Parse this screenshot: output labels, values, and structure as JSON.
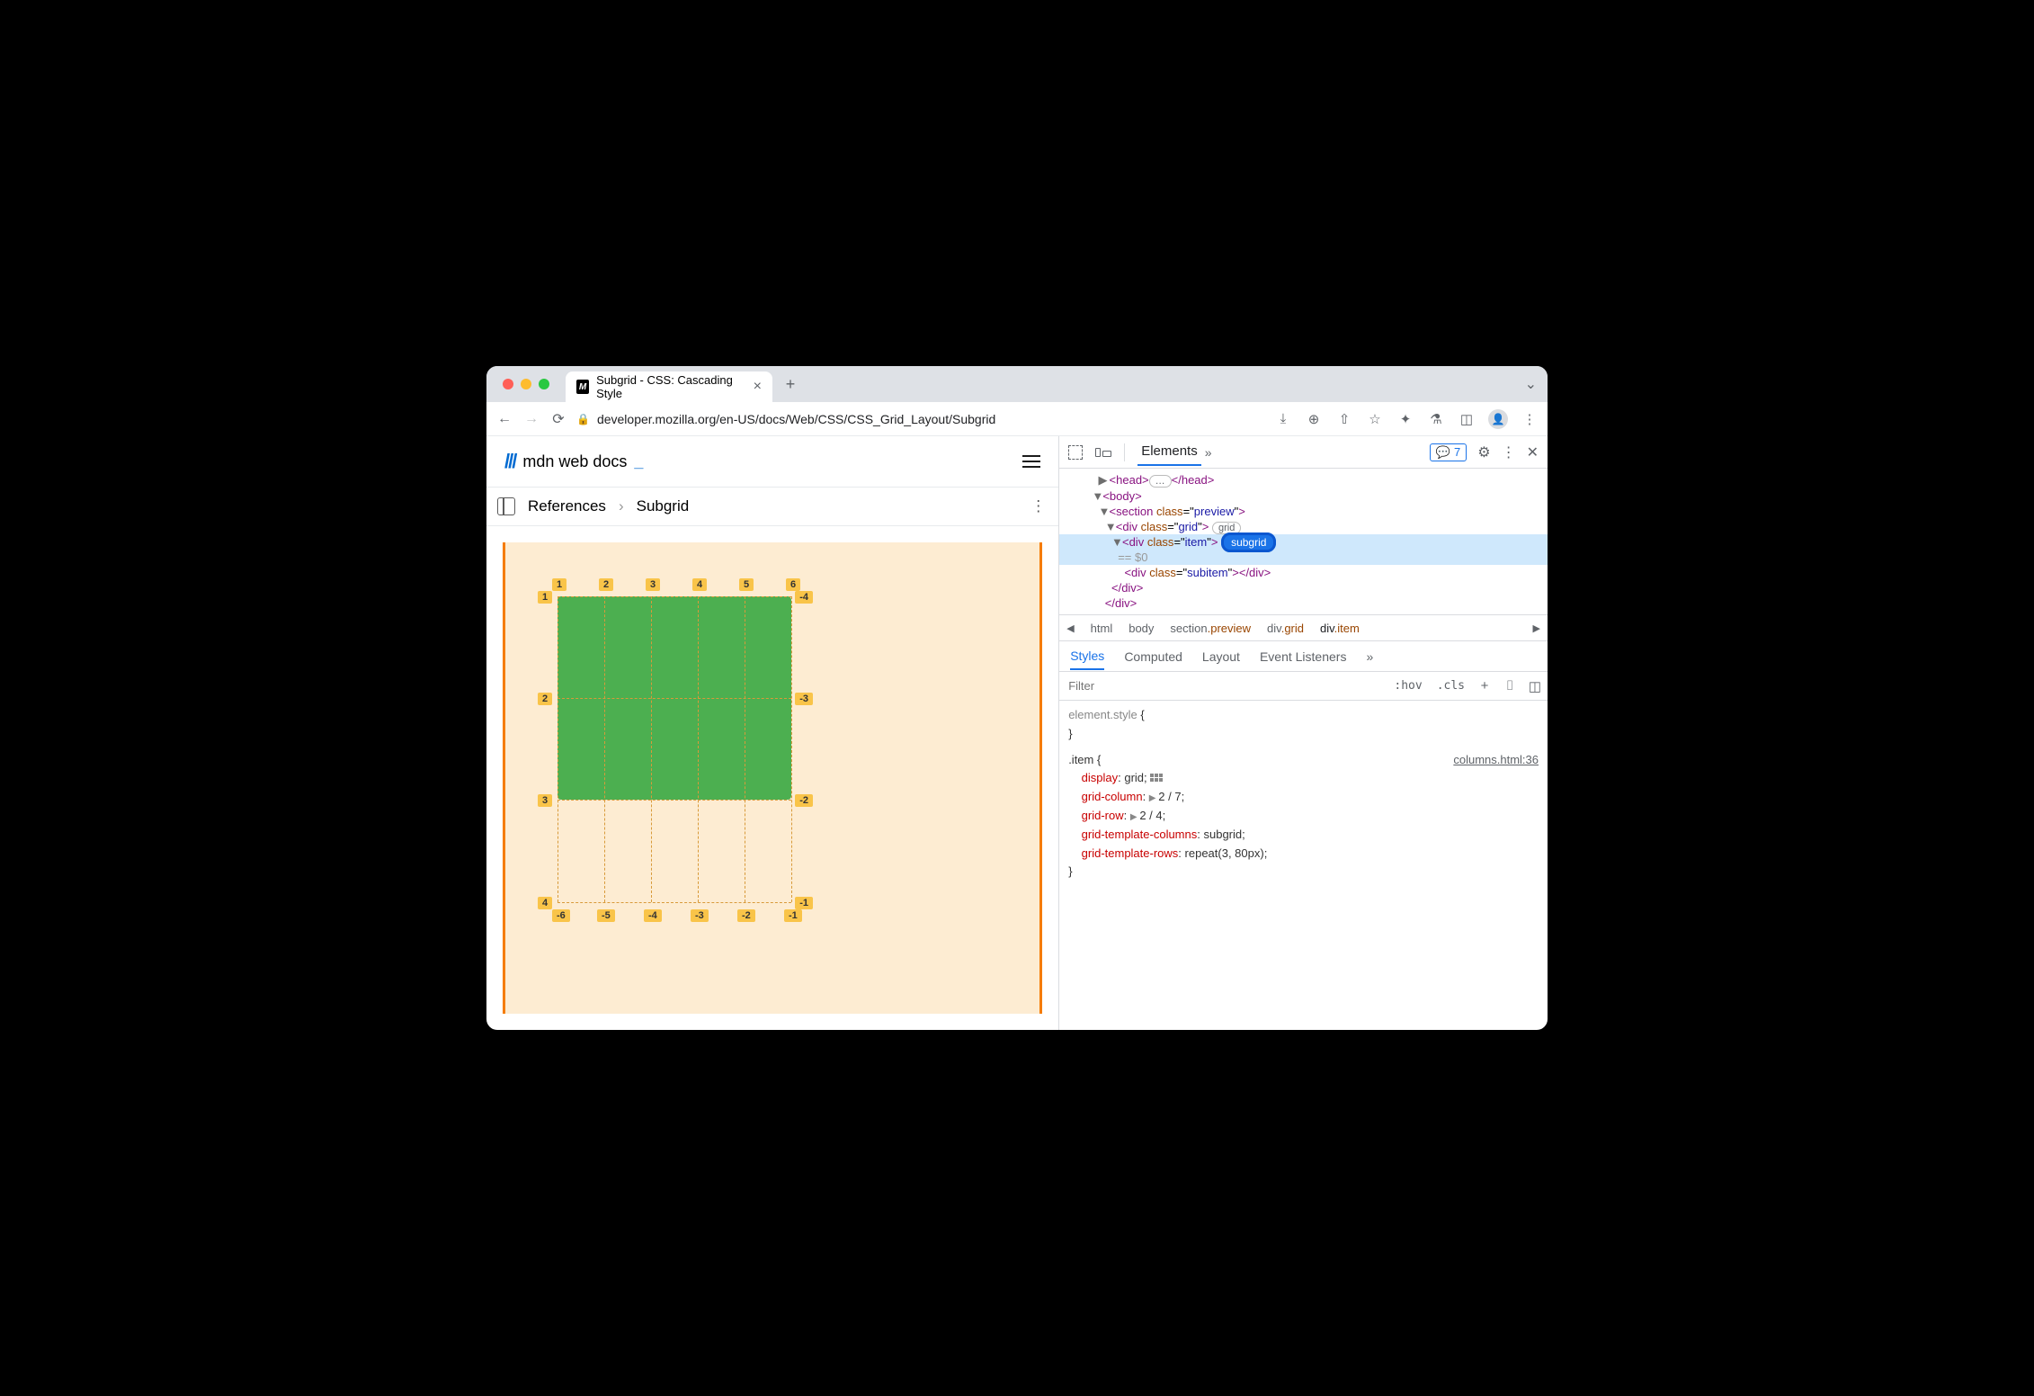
{
  "browser": {
    "tab_title": "Subgrid - CSS: Cascading Style",
    "url": "developer.mozilla.org/en-US/docs/Web/CSS/CSS_Grid_Layout/Subgrid"
  },
  "page": {
    "logo_text": "mdn web docs",
    "logo_cursor": "_",
    "breadcrumb": {
      "level1": "References",
      "level2": "Subgrid"
    }
  },
  "grid_preview": {
    "top_labels": [
      "1",
      "2",
      "3",
      "4",
      "5",
      "6"
    ],
    "left_labels": [
      "1",
      "2",
      "3",
      "4"
    ],
    "right_labels": [
      "-4",
      "-3",
      "-2",
      "-1"
    ],
    "bottom_labels": [
      "-6",
      "-5",
      "-4",
      "-3",
      "-2",
      "-1"
    ],
    "colors": {
      "frame_border": "#f57c00",
      "frame_bg": "#fdecd2",
      "subitem": "#4caf50",
      "label_bg": "#f9c449",
      "gridline": "#d89a3a"
    },
    "columns": 5,
    "rows": 3
  },
  "devtools": {
    "active_panel": "Elements",
    "issue_count": "7",
    "dom": {
      "head": {
        "open": "<head>",
        "ellipsis": "…",
        "close": "</head>"
      },
      "body": "<body>",
      "section": {
        "tag": "section",
        "class_attr": "class",
        "class_val": "preview"
      },
      "grid": {
        "tag": "div",
        "class_attr": "class",
        "class_val": "grid",
        "pill": "grid"
      },
      "item": {
        "tag": "div",
        "class_attr": "class",
        "class_val": "item",
        "pill": "subgrid",
        "eq": "== $0"
      },
      "subitem_line": "<div class=\"subitem\"></div>",
      "close_div1": "</div>",
      "close_div2": "</div>"
    },
    "crumbs": [
      "html",
      "body",
      "section.preview",
      "div.grid",
      "div.item"
    ],
    "style_tabs": [
      "Styles",
      "Computed",
      "Layout",
      "Event Listeners"
    ],
    "filter_placeholder": "Filter",
    "filter_opts": {
      "hov": ":hov",
      "cls": ".cls"
    },
    "element_style": {
      "selector": "element.style",
      "open": " {",
      "close": "}"
    },
    "rule": {
      "selector": ".item",
      "open": " {",
      "source": "columns.html:36",
      "decls": [
        {
          "prop": "display",
          "val": "grid",
          "has_grid_icon": true
        },
        {
          "prop": "grid-column",
          "val": "2 / 7",
          "expandable": true
        },
        {
          "prop": "grid-row",
          "val": "2 / 4",
          "expandable": true
        },
        {
          "prop": "grid-template-columns",
          "val": "subgrid"
        },
        {
          "prop": "grid-template-rows",
          "val": "repeat(3, 80px)"
        }
      ],
      "close": "}"
    }
  }
}
